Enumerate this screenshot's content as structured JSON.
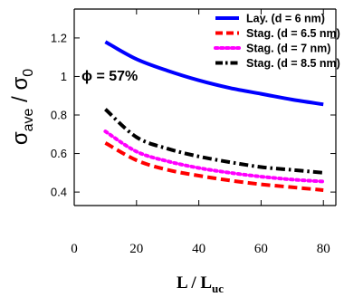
{
  "chart_data": {
    "type": "line",
    "x_tick_labels": [
      "0",
      "20",
      "40",
      "60",
      "80"
    ],
    "x_ticks": [
      0,
      20,
      40,
      60,
      80
    ],
    "y_tick_labels": [
      "0.4",
      "0.6",
      "0.8",
      "1",
      "1.2"
    ],
    "y_ticks": [
      0.4,
      0.6,
      0.8,
      1.0,
      1.2
    ],
    "xlim": [
      0,
      84
    ],
    "ylim": [
      0.33,
      1.35
    ],
    "xlabel": "L / L",
    "xlabel_sub": "uc",
    "ylabel": "σ",
    "ylabel_sub1": "ave",
    "ylabel_mid": " / σ",
    "ylabel_sub2": "0",
    "annotation": "ϕ = 57%",
    "legend_position": "top-right",
    "grid": false,
    "series": [
      {
        "name": "Lay. (d = 6 nm)",
        "color": "#0000ff",
        "dash": "solid",
        "x": [
          10,
          20,
          30,
          40,
          50,
          60,
          70,
          80
        ],
        "y": [
          1.18,
          1.09,
          1.03,
          0.98,
          0.94,
          0.91,
          0.88,
          0.855
        ]
      },
      {
        "name": "Stag. (d = 6.5 nm)",
        "color": "#ff0000",
        "dash": "dash",
        "x": [
          10,
          20,
          30,
          40,
          50,
          60,
          70,
          80
        ],
        "y": [
          0.655,
          0.565,
          0.515,
          0.485,
          0.46,
          0.44,
          0.425,
          0.41
        ]
      },
      {
        "name": "Stag. (d = 7 nm)",
        "color": "#ff00ff",
        "dash": "dot",
        "x": [
          10,
          20,
          30,
          40,
          50,
          60,
          70,
          80
        ],
        "y": [
          0.715,
          0.61,
          0.56,
          0.525,
          0.5,
          0.48,
          0.465,
          0.455
        ]
      },
      {
        "name": "Stag. (d = 8.5 nm)",
        "color": "#000000",
        "dash": "dashdot",
        "x": [
          10,
          20,
          30,
          40,
          50,
          60,
          70,
          80
        ],
        "y": [
          0.83,
          0.685,
          0.625,
          0.585,
          0.555,
          0.53,
          0.515,
          0.5
        ]
      }
    ]
  }
}
